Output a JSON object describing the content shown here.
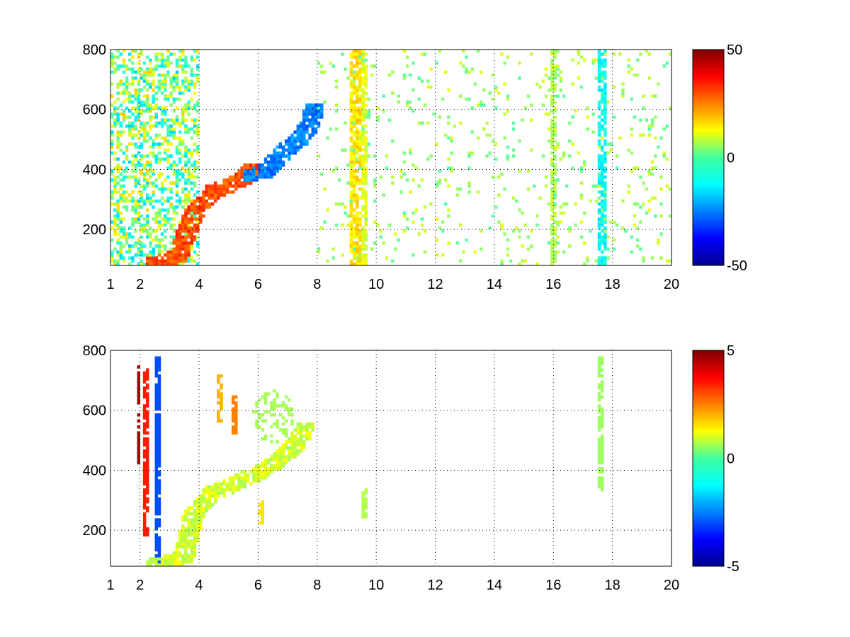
{
  "chart_data": [
    {
      "type": "heatmap",
      "title": "",
      "xlabel": "",
      "ylabel": "",
      "xlim": [
        1,
        20
      ],
      "ylim": [
        80,
        800
      ],
      "xticks": [
        "1",
        "2",
        "4",
        "6",
        "8",
        "10",
        "12",
        "14",
        "16",
        "18",
        "20"
      ],
      "xtick_values": [
        1,
        2,
        4,
        6,
        8,
        10,
        12,
        14,
        16,
        18,
        20
      ],
      "yticks": [
        "200",
        "400",
        "600",
        "800"
      ],
      "ytick_values": [
        200,
        400,
        600,
        800
      ],
      "grid": true,
      "colormap": "jet",
      "clim": [
        -50,
        50
      ],
      "colorbar_ticks": [
        "-50",
        "0",
        "50"
      ],
      "colorbar_tick_values": [
        -50,
        0,
        50
      ],
      "features": [
        {
          "kind": "dense-noise",
          "x": [
            1,
            4
          ],
          "y": [
            80,
            800
          ],
          "value": 0
        },
        {
          "kind": "track",
          "points": [
            [
              2.5,
              90
            ],
            [
              3.3,
              110
            ],
            [
              3.8,
              250
            ],
            [
              4.5,
              330
            ],
            [
              5.0,
              345
            ],
            [
              5.5,
              370
            ],
            [
              5.8,
              400
            ]
          ],
          "value": 30
        },
        {
          "kind": "track",
          "points": [
            [
              5.8,
              380
            ],
            [
              6.2,
              390
            ],
            [
              6.6,
              430
            ],
            [
              7.0,
              470
            ],
            [
              7.4,
              500
            ],
            [
              7.7,
              540
            ],
            [
              7.9,
              600
            ]
          ],
          "value": -25
        },
        {
          "kind": "stripe",
          "x": 9.3,
          "width": 0.3,
          "value": 15
        },
        {
          "kind": "stripe",
          "x": 9.6,
          "width": 0.15,
          "value": 10
        },
        {
          "kind": "stripe",
          "x": 16.0,
          "width": 0.15,
          "value": 5
        },
        {
          "kind": "stripe",
          "x": 17.65,
          "width": 0.2,
          "value": -12
        },
        {
          "kind": "sparse-noise",
          "x": [
            8,
            20
          ],
          "y": [
            80,
            800
          ],
          "value": 3
        }
      ]
    },
    {
      "type": "heatmap",
      "title": "",
      "xlabel": "",
      "ylabel": "",
      "xlim": [
        1,
        20
      ],
      "ylim": [
        80,
        800
      ],
      "xticks": [
        "1",
        "2",
        "4",
        "6",
        "8",
        "10",
        "12",
        "14",
        "16",
        "18",
        "20"
      ],
      "xtick_values": [
        1,
        2,
        4,
        6,
        8,
        10,
        12,
        14,
        16,
        18,
        20
      ],
      "yticks": [
        "200",
        "400",
        "600",
        "800"
      ],
      "ytick_values": [
        200,
        400,
        600,
        800
      ],
      "grid": true,
      "colormap": "jet",
      "clim": [
        -5,
        5
      ],
      "colorbar_ticks": [
        "-5",
        "0",
        "5"
      ],
      "colorbar_tick_values": [
        -5,
        0,
        5
      ],
      "features": [
        {
          "kind": "vline",
          "x": 1.95,
          "y": [
            420,
            760
          ],
          "value": 4.5
        },
        {
          "kind": "vline",
          "x": 2.2,
          "y": [
            180,
            740
          ],
          "value": 3.5
        },
        {
          "kind": "vline",
          "x": 2.6,
          "y": [
            90,
            780
          ],
          "value": -3
        },
        {
          "kind": "track",
          "points": [
            [
              2.5,
              85
            ],
            [
              3.0,
              95
            ],
            [
              3.5,
              110
            ],
            [
              3.8,
              250
            ],
            [
              4.5,
              330
            ],
            [
              5.0,
              345
            ],
            [
              5.5,
              370
            ],
            [
              6.0,
              390
            ],
            [
              6.5,
              420
            ],
            [
              7.0,
              460
            ],
            [
              7.3,
              490
            ],
            [
              7.6,
              540
            ]
          ],
          "value": 0.8
        },
        {
          "kind": "blob",
          "x": 6.5,
          "y": 580,
          "rx": 0.7,
          "ry": 90,
          "value": 0.4
        },
        {
          "kind": "vline",
          "x": 9.6,
          "y": [
            230,
            340
          ],
          "value": 0.5
        },
        {
          "kind": "vline",
          "x": 17.6,
          "y": [
            330,
            780
          ],
          "value": 0.3
        },
        {
          "kind": "vline",
          "x": 4.7,
          "y": [
            560,
            720
          ],
          "value": 2
        },
        {
          "kind": "vline",
          "x": 5.2,
          "y": [
            520,
            650
          ],
          "value": 2.5
        },
        {
          "kind": "vline",
          "x": 6.1,
          "y": [
            220,
            300
          ],
          "value": 1.5
        }
      ]
    }
  ]
}
